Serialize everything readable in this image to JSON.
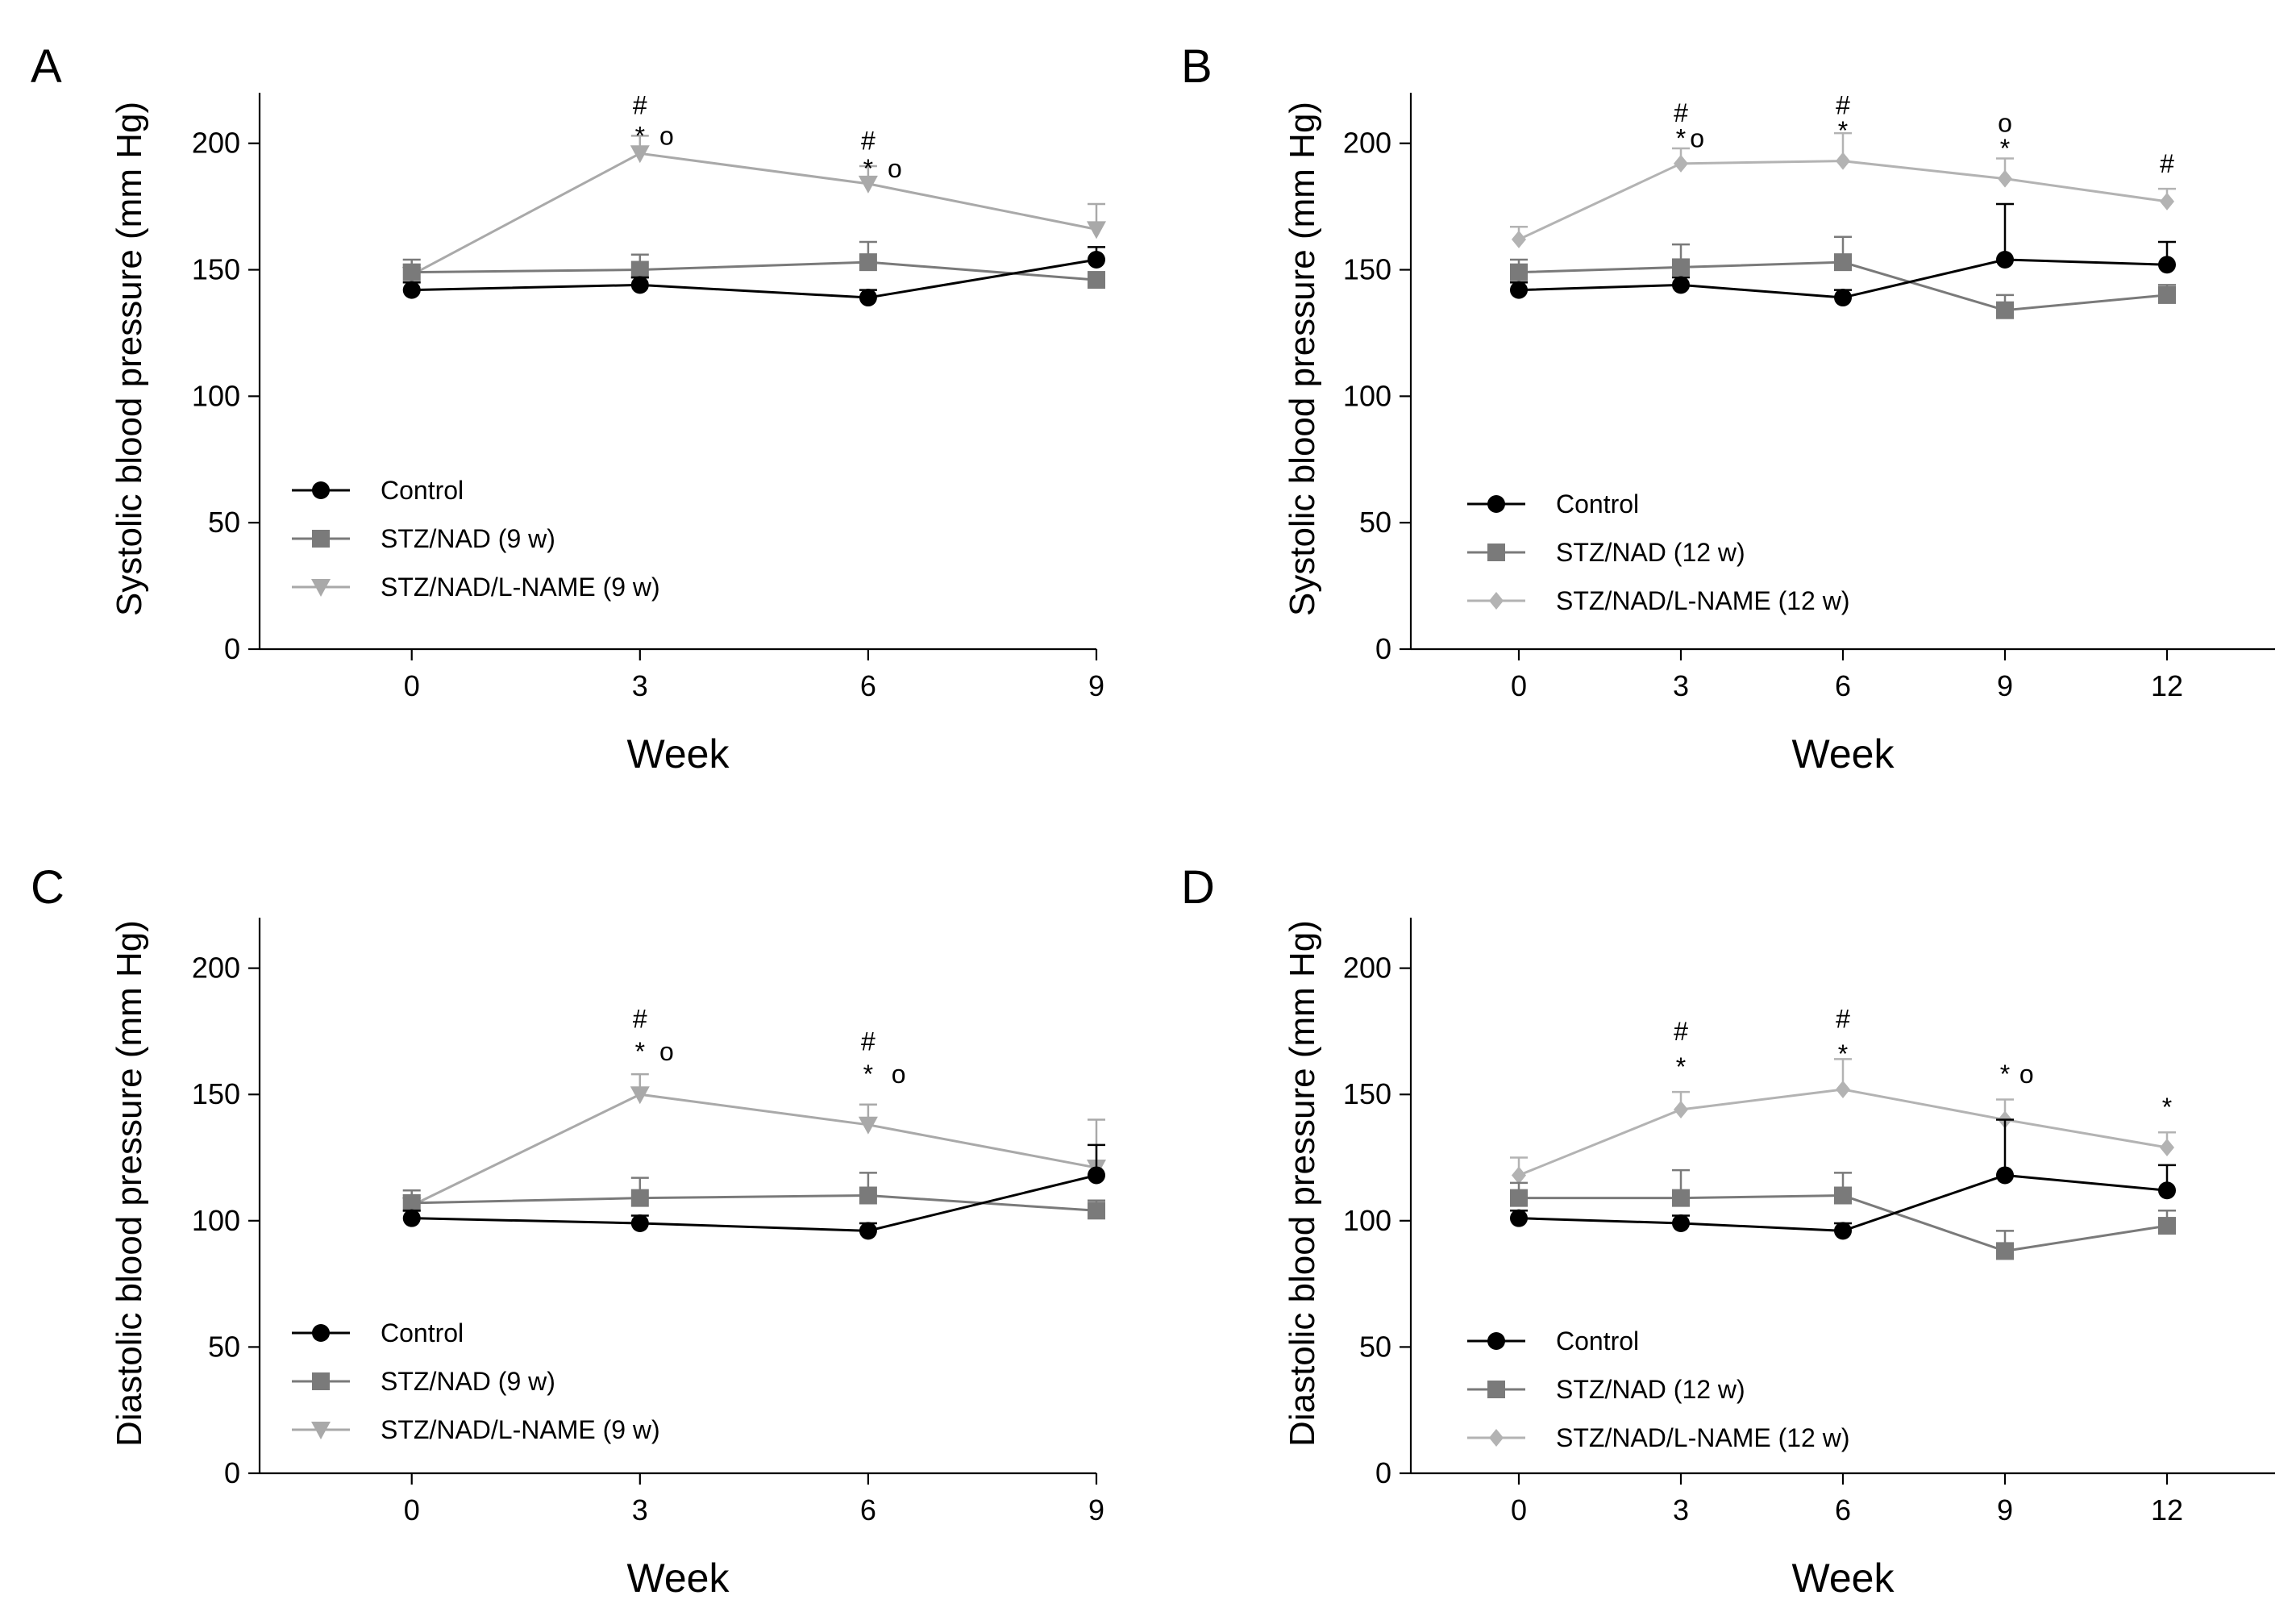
{
  "figure": {
    "x_axis_label": "Week",
    "colors": {
      "control": "#000000",
      "stz": "#7a7a7a",
      "lname9": "#a9a9a9",
      "lname12": "#b3b3b3",
      "axis": "#000000"
    }
  },
  "chart_data": [
    {
      "id": "A",
      "panel_letter": "A",
      "type": "line",
      "xlabel": "Week",
      "ylabel": "Systolic blood pressure (mm Hg)",
      "x": [
        0,
        3,
        6,
        9
      ],
      "x_ticks": [
        "0",
        "3",
        "6",
        "9"
      ],
      "xlim": [
        -2,
        9
      ],
      "ylim": [
        0,
        220
      ],
      "y_ticks": [
        "0",
        "50",
        "100",
        "150",
        "200"
      ],
      "legend_position": "bottom-left",
      "series": [
        {
          "name": "Control",
          "marker": "circle",
          "color": "#000000",
          "x": [
            0,
            3,
            6,
            9
          ],
          "values": [
            142,
            144,
            139,
            154
          ],
          "err": [
            3,
            3,
            3,
            5
          ]
        },
        {
          "name": "STZ/NAD (9 w)",
          "marker": "square",
          "color": "#7a7a7a",
          "x": [
            0,
            3,
            6,
            9
          ],
          "values": [
            149,
            150,
            153,
            146
          ],
          "err": [
            5,
            6,
            8,
            3
          ]
        },
        {
          "name": "STZ/NAD/L-NAME (9 w)",
          "marker": "triangle-down",
          "color": "#a9a9a9",
          "x": [
            0,
            3,
            6,
            9
          ],
          "values": [
            148,
            196,
            184,
            166
          ],
          "err": [
            4,
            7,
            7,
            10
          ]
        }
      ],
      "annotations": [
        {
          "x": 3,
          "y": 215,
          "text": "#"
        },
        {
          "x": 3,
          "y": 203,
          "text": "*"
        },
        {
          "x": 3.35,
          "y": 203,
          "text": "o"
        },
        {
          "x": 6,
          "y": 201,
          "text": "#"
        },
        {
          "x": 6,
          "y": 190,
          "text": "*"
        },
        {
          "x": 6.35,
          "y": 190,
          "text": "o"
        }
      ]
    },
    {
      "id": "B",
      "panel_letter": "B",
      "type": "line",
      "xlabel": "Week",
      "ylabel": "Systolic blood pressure (mm Hg)",
      "x": [
        0,
        3,
        6,
        9,
        12
      ],
      "x_ticks": [
        "0",
        "3",
        "6",
        "9",
        "12"
      ],
      "xlim": [
        -2,
        14
      ],
      "ylim": [
        0,
        220
      ],
      "y_ticks": [
        "0",
        "50",
        "100",
        "150",
        "200"
      ],
      "legend_position": "bottom-left",
      "series": [
        {
          "name": "Control",
          "marker": "circle",
          "color": "#000000",
          "x": [
            0,
            3,
            6,
            9,
            12
          ],
          "values": [
            142,
            144,
            139,
            154,
            152
          ],
          "err": [
            3,
            3,
            3,
            22,
            9
          ]
        },
        {
          "name": "STZ/NAD (12 w)",
          "marker": "square",
          "color": "#7a7a7a",
          "x": [
            0,
            3,
            6,
            9,
            12
          ],
          "values": [
            149,
            151,
            153,
            134,
            140
          ],
          "err": [
            5,
            9,
            10,
            6,
            4
          ]
        },
        {
          "name": "STZ/NAD/L-NAME (12 w)",
          "marker": "diamond",
          "color": "#b3b3b3",
          "x": [
            0,
            3,
            6,
            9,
            12
          ],
          "values": [
            162,
            192,
            193,
            186,
            177
          ],
          "err": [
            5,
            6,
            11,
            8,
            5
          ]
        }
      ],
      "annotations": [
        {
          "x": 3,
          "y": 212,
          "text": "#"
        },
        {
          "x": 3,
          "y": 202,
          "text": "*"
        },
        {
          "x": 3.3,
          "y": 202,
          "text": "o"
        },
        {
          "x": 6,
          "y": 215,
          "text": "#"
        },
        {
          "x": 6,
          "y": 205,
          "text": "*"
        },
        {
          "x": 9,
          "y": 208,
          "text": "o"
        },
        {
          "x": 9,
          "y": 198,
          "text": "*"
        },
        {
          "x": 12,
          "y": 192,
          "text": "#"
        }
      ]
    },
    {
      "id": "C",
      "panel_letter": "C",
      "type": "line",
      "xlabel": "Week",
      "ylabel": "Diastolic blood pressure (mm Hg)",
      "x": [
        0,
        3,
        6,
        9
      ],
      "x_ticks": [
        "0",
        "3",
        "6",
        "9"
      ],
      "xlim": [
        -2,
        9
      ],
      "ylim": [
        0,
        220
      ],
      "y_ticks": [
        "0",
        "50",
        "100",
        "150",
        "200"
      ],
      "legend_position": "bottom-left",
      "series": [
        {
          "name": "Control",
          "marker": "circle",
          "color": "#000000",
          "x": [
            0,
            3,
            6,
            9
          ],
          "values": [
            101,
            99,
            96,
            118
          ],
          "err": [
            3,
            3,
            3,
            12
          ]
        },
        {
          "name": "STZ/NAD (9 w)",
          "marker": "square",
          "color": "#7a7a7a",
          "x": [
            0,
            3,
            6,
            9
          ],
          "values": [
            107,
            109,
            110,
            104
          ],
          "err": [
            5,
            8,
            9,
            4
          ]
        },
        {
          "name": "STZ/NAD/L-NAME (9 w)",
          "marker": "triangle-down",
          "color": "#a9a9a9",
          "x": [
            0,
            3,
            6,
            9
          ],
          "values": [
            106,
            150,
            138,
            121
          ],
          "err": [
            4,
            8,
            8,
            19
          ]
        }
      ],
      "annotations": [
        {
          "x": 3,
          "y": 180,
          "text": "#"
        },
        {
          "x": 3,
          "y": 167,
          "text": "*"
        },
        {
          "x": 3.35,
          "y": 167,
          "text": "o"
        },
        {
          "x": 6,
          "y": 171,
          "text": "#"
        },
        {
          "x": 6,
          "y": 158,
          "text": "*"
        },
        {
          "x": 6.4,
          "y": 158,
          "text": "o"
        }
      ]
    },
    {
      "id": "D",
      "panel_letter": "D",
      "type": "line",
      "xlabel": "Week",
      "ylabel": "Diastolic blood pressure (mm Hg)",
      "x": [
        0,
        3,
        6,
        9,
        12
      ],
      "x_ticks": [
        "0",
        "3",
        "6",
        "9",
        "12"
      ],
      "xlim": [
        -2,
        14
      ],
      "ylim": [
        0,
        220
      ],
      "y_ticks": [
        "0",
        "50",
        "100",
        "150",
        "200"
      ],
      "legend_position": "bottom-left",
      "series": [
        {
          "name": "Control",
          "marker": "circle",
          "color": "#000000",
          "x": [
            0,
            3,
            6,
            9,
            12
          ],
          "values": [
            101,
            99,
            96,
            118,
            112
          ],
          "err": [
            3,
            3,
            3,
            22,
            10
          ]
        },
        {
          "name": "STZ/NAD (12 w)",
          "marker": "square",
          "color": "#7a7a7a",
          "x": [
            0,
            3,
            6,
            9,
            12
          ],
          "values": [
            109,
            109,
            110,
            88,
            98
          ],
          "err": [
            6,
            11,
            9,
            8,
            6
          ]
        },
        {
          "name": "STZ/NAD/L-NAME (12 w)",
          "marker": "diamond",
          "color": "#b3b3b3",
          "x": [
            0,
            3,
            6,
            9,
            12
          ],
          "values": [
            118,
            144,
            152,
            140,
            129
          ],
          "err": [
            7,
            7,
            12,
            8,
            6
          ]
        }
      ],
      "annotations": [
        {
          "x": 3,
          "y": 175,
          "text": "#"
        },
        {
          "x": 3,
          "y": 161,
          "text": "*"
        },
        {
          "x": 6,
          "y": 180,
          "text": "#"
        },
        {
          "x": 6,
          "y": 166,
          "text": "*"
        },
        {
          "x": 9,
          "y": 158,
          "text": "*"
        },
        {
          "x": 9.4,
          "y": 158,
          "text": "o"
        },
        {
          "x": 12,
          "y": 145,
          "text": "*"
        }
      ]
    }
  ]
}
